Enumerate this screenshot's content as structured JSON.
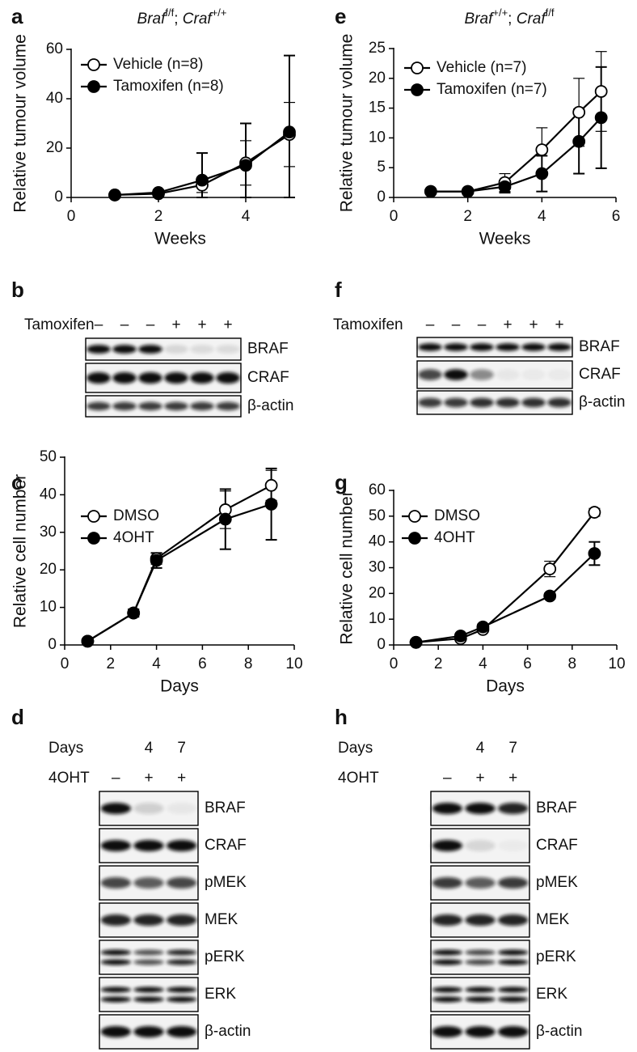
{
  "chart_data": [
    {
      "panel": "a",
      "type": "line",
      "title": [
        {
          "text": "Braf",
          "italic": true
        },
        {
          "text": "f/f",
          "sup": true
        },
        {
          "text": "; "
        },
        {
          "text": "Craf",
          "italic": true
        },
        {
          "text": "+/+",
          "sup": true
        }
      ],
      "x_label": "Weeks",
      "y_label": "Relative tumour volume",
      "x": [
        1,
        2,
        3,
        4,
        5
      ],
      "xlim": [
        0,
        5
      ],
      "xticks": [
        0,
        2,
        4
      ],
      "ylim": [
        0,
        60
      ],
      "yticks": [
        0,
        20,
        40,
        60
      ],
      "legend": "upper left",
      "series": [
        {
          "name": "Vehicle (n=8)",
          "color": "#000000",
          "marker_fill": "#ffffff",
          "values": [
            1,
            1.5,
            5,
            14,
            25.5
          ],
          "errors": [
            0.5,
            1,
            3,
            9,
            13
          ]
        },
        {
          "name": "Tamoxifen (n=8)",
          "color": "#000000",
          "marker_fill": "#000000",
          "values": [
            1,
            2,
            7,
            13,
            26.5
          ],
          "errors": [
            0.5,
            1,
            11,
            17,
            31
          ]
        }
      ]
    },
    {
      "panel": "e",
      "type": "line",
      "title": [
        {
          "text": "Braf",
          "italic": true
        },
        {
          "text": "+/+",
          "sup": true
        },
        {
          "text": "; "
        },
        {
          "text": "Craf",
          "italic": true
        },
        {
          "text": "f/f",
          "sup": true
        }
      ],
      "x_label": "Weeks",
      "y_label": "Relative tumour volume",
      "x": [
        1,
        2,
        3,
        4,
        5,
        5.6
      ],
      "xlim": [
        0,
        6
      ],
      "xticks": [
        0,
        2,
        4,
        6
      ],
      "ylim": [
        0,
        25
      ],
      "yticks": [
        0,
        5,
        10,
        15,
        20,
        25
      ],
      "legend": "upper left",
      "series": [
        {
          "name": "Vehicle (n=7)",
          "color": "#000000",
          "marker_fill": "#ffffff",
          "values": [
            1,
            1,
            2.5,
            8,
            14.3,
            17.8
          ],
          "errors": [
            0.3,
            0.3,
            1.5,
            3.7,
            5.7,
            6.7
          ]
        },
        {
          "name": "Tamoxifen (n=7)",
          "color": "#000000",
          "marker_fill": "#000000",
          "values": [
            1,
            1,
            1.8,
            4,
            9.4,
            13.4
          ],
          "errors": [
            0.3,
            0.3,
            1,
            3,
            5.4,
            8.5
          ]
        }
      ]
    },
    {
      "panel": "c",
      "type": "line",
      "x_label": "Days",
      "y_label": "Relative cell number",
      "x": [
        1,
        3,
        4,
        7,
        9
      ],
      "xlim": [
        0,
        10
      ],
      "xticks": [
        0,
        2,
        4,
        6,
        8,
        10
      ],
      "ylim": [
        0,
        50
      ],
      "yticks": [
        0,
        10,
        20,
        30,
        40,
        50
      ],
      "legend": "upper left",
      "series": [
        {
          "name": "DMSO",
          "color": "#000000",
          "marker_fill": "#ffffff",
          "values": [
            1,
            8.5,
            23,
            36,
            42.5
          ],
          "errors": [
            0.5,
            1,
            1.5,
            5,
            4
          ]
        },
        {
          "name": "4OHT",
          "color": "#000000",
          "marker_fill": "#000000",
          "values": [
            1,
            8.5,
            22.5,
            33.5,
            37.5
          ],
          "errors": [
            0.5,
            1,
            2,
            8,
            9.5
          ]
        }
      ]
    },
    {
      "panel": "g",
      "type": "line",
      "x_label": "Days",
      "y_label": "Relative cell number",
      "x": [
        1,
        3,
        4,
        7,
        9
      ],
      "xlim": [
        0,
        10
      ],
      "xticks": [
        0,
        2,
        4,
        6,
        8,
        10
      ],
      "ylim": [
        0,
        60
      ],
      "yticks": [
        0,
        10,
        20,
        30,
        40,
        50,
        60
      ],
      "legend": "upper left",
      "series": [
        {
          "name": "DMSO",
          "color": "#000000",
          "marker_fill": "#ffffff",
          "values": [
            1,
            2.5,
            6,
            29.5,
            51.5
          ],
          "errors": [
            0.3,
            0.5,
            1,
            3,
            1.5
          ]
        },
        {
          "name": "4OHT",
          "color": "#000000",
          "marker_fill": "#000000",
          "values": [
            1,
            3.5,
            7,
            19,
            35.5
          ],
          "errors": [
            0.3,
            0.5,
            1,
            1,
            4.5
          ]
        }
      ]
    }
  ],
  "blots": [
    {
      "panel": "b",
      "rows": [
        {
          "label": "Tamoxifen",
          "marks": [
            "–",
            "–",
            "–",
            "+",
            "+",
            "+"
          ]
        }
      ],
      "bands": [
        "BRAF",
        "CRAF",
        "β-actin"
      ]
    },
    {
      "panel": "f",
      "rows": [
        {
          "label": "Tamoxifen",
          "marks": [
            "–",
            "–",
            "–",
            "+",
            "+",
            "+"
          ]
        }
      ],
      "bands": [
        "BRAF",
        "CRAF",
        "β-actin"
      ]
    },
    {
      "panel": "d",
      "rows": [
        {
          "label": "Days",
          "marks": [
            null,
            "4",
            "7"
          ]
        },
        {
          "label": "4OHT",
          "marks": [
            "–",
            "+",
            "+"
          ]
        }
      ],
      "bands": [
        "BRAF",
        "CRAF",
        "pMEK",
        "MEK",
        "pERK",
        "ERK",
        "β-actin"
      ]
    },
    {
      "panel": "h",
      "rows": [
        {
          "label": "Days",
          "marks": [
            null,
            "4",
            "7"
          ]
        },
        {
          "label": "4OHT",
          "marks": [
            "–",
            "+",
            "+"
          ]
        }
      ],
      "bands": [
        "BRAF",
        "CRAF",
        "pMEK",
        "MEK",
        "pERK",
        "ERK",
        "β-actin"
      ]
    }
  ]
}
